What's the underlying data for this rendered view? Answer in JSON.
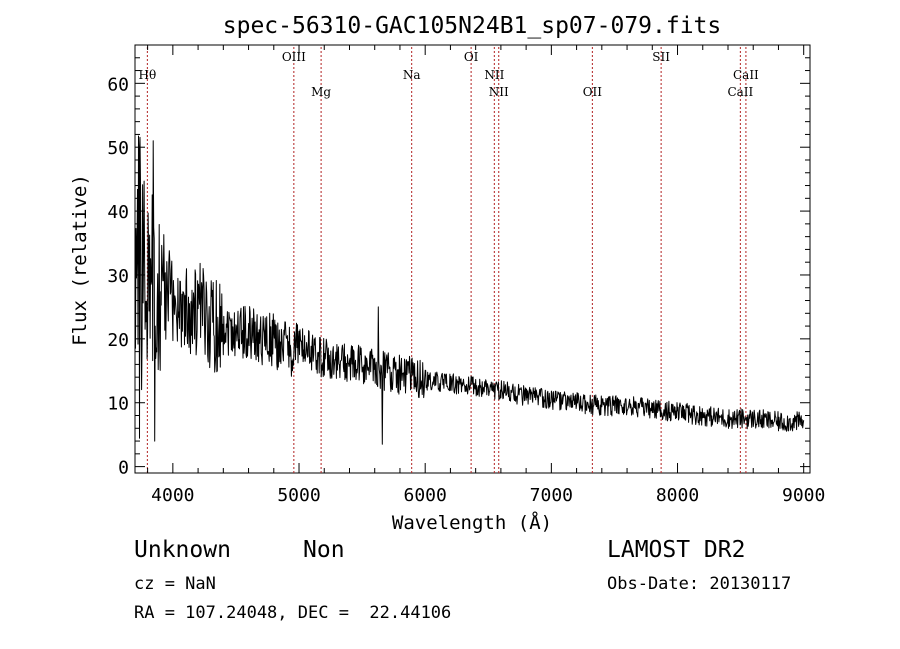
{
  "chart_data": {
    "type": "line",
    "title": "spec-56310-GAC105N24B1_sp07-079.fits",
    "xlabel": "Wavelength (Å)",
    "ylabel": "Flux (relative)",
    "xlim": [
      3700,
      9050
    ],
    "ylim": [
      -1,
      66
    ],
    "xticks": [
      4000,
      5000,
      6000,
      7000,
      8000,
      9000
    ],
    "yticks": [
      0,
      10,
      20,
      30,
      40,
      50,
      60
    ],
    "line_color": "#000000",
    "marker_color": "#b22222",
    "spectrum_anchors": {
      "x": [
        3700,
        3760,
        3800,
        3900,
        4000,
        4200,
        4400,
        4600,
        4800,
        4950,
        5000,
        5200,
        5400,
        5600,
        5800,
        6000,
        6200,
        6400,
        6600,
        6800,
        7000,
        7200,
        7400,
        7600,
        7800,
        8000,
        8200,
        8400,
        8600,
        8800,
        9000
      ],
      "y": [
        28,
        33,
        30,
        28,
        26,
        24,
        22,
        21,
        19.5,
        18.5,
        19,
        17,
        16,
        15.5,
        14.5,
        13.5,
        13,
        12.5,
        12,
        11,
        10.5,
        10,
        9.5,
        9.5,
        9,
        8.5,
        8,
        7.5,
        7.5,
        7,
        7
      ]
    },
    "spectrum_noise": 4,
    "spectral_lines": [
      {
        "label": "Hθ",
        "wavelength": 3798,
        "row": "high"
      },
      {
        "label": "OIII",
        "wavelength": 4959,
        "row": "top"
      },
      {
        "label": "Mg",
        "wavelength": 5175,
        "row": "low"
      },
      {
        "label": "Na",
        "wavelength": 5893,
        "row": "high"
      },
      {
        "label": "OI",
        "wavelength": 6364,
        "row": "top"
      },
      {
        "label": "NII",
        "wavelength": 6548,
        "row": "high"
      },
      {
        "label": "NII",
        "wavelength": 6583,
        "row": "low"
      },
      {
        "label": "OII",
        "wavelength": 7325,
        "row": "low"
      },
      {
        "label": "SII",
        "wavelength": 7870,
        "row": "top"
      },
      {
        "label": "CaII",
        "wavelength": 8498,
        "row": "low"
      },
      {
        "label": "CaII",
        "wavelength": 8542,
        "row": "high"
      }
    ]
  },
  "info": {
    "class": "Unknown",
    "subclass": "Non",
    "survey": "LAMOST DR2",
    "cz": "cz = NaN",
    "obs_date": "Obs-Date: 20130117",
    "coords": "RA = 107.24048, DEC =  22.44106"
  }
}
